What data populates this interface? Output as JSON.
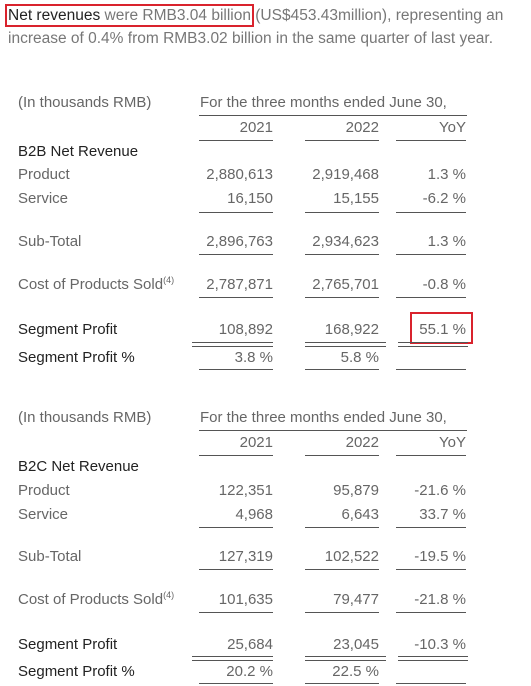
{
  "intro": {
    "highlight_bold": "Net revenues",
    "highlight_rest": " were RMB3.04 billion",
    "remainder": " (US$453.43million), representing an increase of 0.4% from RMB3.02 billion in the same quarter of last year."
  },
  "b2b": {
    "unit_label": "(In thousands RMB)",
    "period_label": "For the three months ended June 30,",
    "columns": [
      "2021",
      "2022",
      "YoY"
    ],
    "section_title": "B2B Net Revenue",
    "rows": {
      "product": {
        "label": "Product",
        "v2021": "2,880,613",
        "v2022": "2,919,468",
        "yoy": "1.3 %"
      },
      "service": {
        "label": "Service",
        "v2021": "16,150",
        "v2022": "15,155",
        "yoy": "-6.2 %"
      },
      "subtotal": {
        "label": "Sub-Total",
        "v2021": "2,896,763",
        "v2022": "2,934,623",
        "yoy": "1.3 %"
      },
      "cost": {
        "label": "Cost of Products Sold",
        "footnote": "(4)",
        "v2021": "2,787,871",
        "v2022": "2,765,701",
        "yoy": "-0.8 %"
      },
      "profit": {
        "label": "Segment Profit",
        "v2021": "108,892",
        "v2022": "168,922",
        "yoy": "55.1 %"
      },
      "profit_pct": {
        "label": "Segment Profit %",
        "v2021": "3.8 %",
        "v2022": "5.8 %"
      }
    }
  },
  "b2c": {
    "unit_label": "(In thousands RMB)",
    "period_label": "For the three months ended June 30,",
    "columns": [
      "2021",
      "2022",
      "YoY"
    ],
    "section_title": "B2C Net Revenue",
    "rows": {
      "product": {
        "label": "Product",
        "v2021": "122,351",
        "v2022": "95,879",
        "yoy": "-21.6 %"
      },
      "service": {
        "label": "Service",
        "v2021": "4,968",
        "v2022": "6,643",
        "yoy": "33.7 %"
      },
      "subtotal": {
        "label": "Sub-Total",
        "v2021": "127,319",
        "v2022": "102,522",
        "yoy": "-19.5 %"
      },
      "cost": {
        "label": "Cost of Products Sold",
        "footnote": "(4)",
        "v2021": "101,635",
        "v2022": "79,477",
        "yoy": "-21.8 %"
      },
      "profit": {
        "label": "Segment Profit",
        "v2021": "25,684",
        "v2022": "23,045",
        "yoy": "-10.3 %"
      },
      "profit_pct": {
        "label": "Segment Profit %",
        "v2021": "20.2 %",
        "v2022": "22.5 %"
      }
    }
  }
}
